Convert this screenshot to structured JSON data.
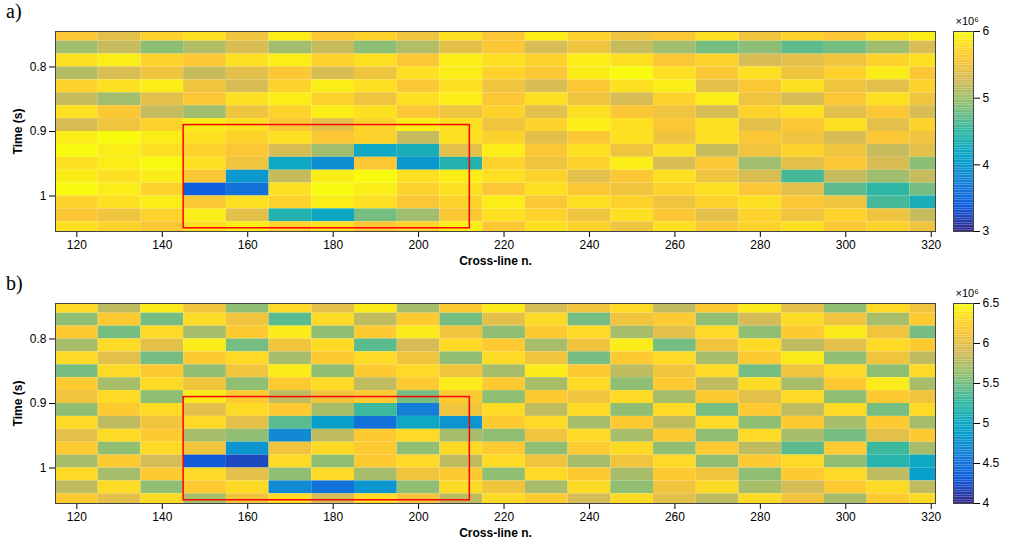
{
  "chart_data": [
    {
      "type": "heatmap",
      "panel_label": "a)",
      "xlabel": "Cross-line n.",
      "ylabel": "Time (s)",
      "xlim": [
        115,
        321
      ],
      "xticks": [
        120,
        140,
        160,
        180,
        200,
        220,
        240,
        260,
        280,
        300,
        320
      ],
      "ylim": [
        0.745,
        1.055
      ],
      "yticks": [
        0.8,
        0.9,
        1
      ],
      "x": [
        120,
        130,
        140,
        150,
        160,
        170,
        180,
        190,
        200,
        210,
        220,
        230,
        240,
        250,
        260,
        270,
        280,
        290,
        300,
        310,
        320
      ],
      "y": [
        0.75,
        0.77,
        0.79,
        0.81,
        0.83,
        0.85,
        0.87,
        0.89,
        0.91,
        0.93,
        0.95,
        0.97,
        0.99,
        1.01,
        1.03,
        1.05
      ],
      "values": [
        [
          5.6,
          5.4,
          5.7,
          5.8,
          5.5,
          5.9,
          5.6,
          5.7,
          5.5,
          5.8,
          5.6,
          5.9,
          5.7,
          5.5,
          5.6,
          5.8,
          5.5,
          5.7,
          5.6,
          5.8,
          5.9
        ],
        [
          5.0,
          5.2,
          4.9,
          5.1,
          5.3,
          5.0,
          5.2,
          4.9,
          5.1,
          5.4,
          5.6,
          5.3,
          5.5,
          5.2,
          5.0,
          4.8,
          4.9,
          4.7,
          4.8,
          5.0,
          5.3
        ],
        [
          5.8,
          5.9,
          5.7,
          5.6,
          5.8,
          5.9,
          5.7,
          5.8,
          5.6,
          5.9,
          5.8,
          5.7,
          5.9,
          5.8,
          5.6,
          5.7,
          5.3,
          5.4,
          5.5,
          5.7,
          5.8
        ],
        [
          5.1,
          5.3,
          5.5,
          5.2,
          5.4,
          5.6,
          5.3,
          5.5,
          5.8,
          5.9,
          5.7,
          5.6,
          5.9,
          6.0,
          5.8,
          5.6,
          5.8,
          5.5,
          5.7,
          5.9,
          5.6
        ],
        [
          5.7,
          5.8,
          5.9,
          5.5,
          5.3,
          5.7,
          5.9,
          5.8,
          5.6,
          5.8,
          5.5,
          5.3,
          5.6,
          5.8,
          5.9,
          5.4,
          5.6,
          5.8,
          5.5,
          5.4,
          5.7
        ],
        [
          5.2,
          5.0,
          5.4,
          5.6,
          5.8,
          5.9,
          5.7,
          5.5,
          5.8,
          5.9,
          5.6,
          5.8,
          5.5,
          5.3,
          5.7,
          5.9,
          5.5,
          5.3,
          5.6,
          5.8,
          5.5
        ],
        [
          5.8,
          5.6,
          5.2,
          5.0,
          5.5,
          5.7,
          5.9,
          5.8,
          5.6,
          5.5,
          5.7,
          5.4,
          5.8,
          5.6,
          5.5,
          5.3,
          5.7,
          5.8,
          5.4,
          5.6,
          5.3
        ],
        [
          5.3,
          5.5,
          5.7,
          5.9,
          5.8,
          5.6,
          5.4,
          5.7,
          5.9,
          5.8,
          5.5,
          5.7,
          5.9,
          5.8,
          5.6,
          5.8,
          5.4,
          5.6,
          5.8,
          5.4,
          5.7
        ],
        [
          5.9,
          6.0,
          5.9,
          5.8,
          5.7,
          5.8,
          5.6,
          5.7,
          5.2,
          5.8,
          5.7,
          5.4,
          5.6,
          5.8,
          5.5,
          5.8,
          5.6,
          5.5,
          5.3,
          5.6,
          5.5
        ],
        [
          6.0,
          5.9,
          5.8,
          5.7,
          5.6,
          5.3,
          5.0,
          4.2,
          4.3,
          5.4,
          5.9,
          5.6,
          5.8,
          5.5,
          5.8,
          5.2,
          5.5,
          5.7,
          5.5,
          5.2,
          5.4
        ],
        [
          5.8,
          5.9,
          6.0,
          5.8,
          5.5,
          4.2,
          3.9,
          5.6,
          4.0,
          4.4,
          5.7,
          5.5,
          5.7,
          5.9,
          5.3,
          5.6,
          5.0,
          5.4,
          5.6,
          5.3,
          4.9
        ],
        [
          5.9,
          5.8,
          5.9,
          5.6,
          4.0,
          5.2,
          5.9,
          6.0,
          5.8,
          5.9,
          5.8,
          5.7,
          5.4,
          5.6,
          5.8,
          5.5,
          5.3,
          4.6,
          5.2,
          5.0,
          5.2
        ],
        [
          6.0,
          5.9,
          5.7,
          3.4,
          3.6,
          5.8,
          6.0,
          5.9,
          5.7,
          5.8,
          5.6,
          5.8,
          5.6,
          5.5,
          5.7,
          5.8,
          5.6,
          5.4,
          4.7,
          4.5,
          4.8
        ],
        [
          5.7,
          5.8,
          5.9,
          5.6,
          5.8,
          5.7,
          5.9,
          5.8,
          5.6,
          5.7,
          5.9,
          5.6,
          5.8,
          5.7,
          5.5,
          5.7,
          5.8,
          5.6,
          5.5,
          4.6,
          4.3
        ],
        [
          5.6,
          5.5,
          5.7,
          5.9,
          5.4,
          4.4,
          4.2,
          4.8,
          5.0,
          5.6,
          5.8,
          5.7,
          5.5,
          5.8,
          5.6,
          5.4,
          5.7,
          5.5,
          5.7,
          5.5,
          5.2
        ],
        [
          5.8,
          5.7,
          5.6,
          5.8,
          5.9,
          5.7,
          5.8,
          5.6,
          5.7,
          5.9,
          5.6,
          5.8,
          5.7,
          5.5,
          5.8,
          5.6,
          5.7,
          5.8,
          5.6,
          5.7,
          5.5
        ]
      ],
      "colorbar": {
        "range": [
          3,
          6
        ],
        "ticks": [
          3,
          4,
          5,
          6
        ],
        "label": "×10⁶"
      },
      "highlight": {
        "x": [
          145,
          212
        ],
        "y": [
          0.89,
          1.05
        ],
        "color": "#ff0000"
      }
    },
    {
      "type": "heatmap",
      "panel_label": "b)",
      "xlabel": "Cross-line n.",
      "ylabel": "Time (s)",
      "xlim": [
        115,
        321
      ],
      "xticks": [
        120,
        140,
        160,
        180,
        200,
        220,
        240,
        260,
        280,
        300,
        320
      ],
      "ylim": [
        0.745,
        1.055
      ],
      "yticks": [
        0.8,
        0.9,
        1
      ],
      "x": [
        120,
        130,
        140,
        150,
        160,
        170,
        180,
        190,
        200,
        210,
        220,
        230,
        240,
        250,
        260,
        270,
        280,
        290,
        300,
        310,
        320
      ],
      "y": [
        0.75,
        0.77,
        0.79,
        0.81,
        0.83,
        0.85,
        0.87,
        0.89,
        0.91,
        0.93,
        0.95,
        0.97,
        0.99,
        1.01,
        1.03,
        1.05
      ],
      "values": [
        [
          6.3,
          5.8,
          6.4,
          6.1,
          5.6,
          6.3,
          6.0,
          6.4,
          5.7,
          6.2,
          6.4,
          5.9,
          6.1,
          6.3,
          5.8,
          6.2,
          6.4,
          6.0,
          5.6,
          6.3,
          6.1
        ],
        [
          5.6,
          6.2,
          5.5,
          6.3,
          6.1,
          5.4,
          6.3,
          5.8,
          6.2,
          5.5,
          6.0,
          6.3,
          5.5,
          6.1,
          6.2,
          5.6,
          5.9,
          6.3,
          6.1,
          5.7,
          6.2
        ],
        [
          6.2,
          5.5,
          6.3,
          5.7,
          6.2,
          6.4,
          5.6,
          6.2,
          6.4,
          6.1,
          5.6,
          6.2,
          6.3,
          5.7,
          6.0,
          6.3,
          5.6,
          6.2,
          6.4,
          6.1,
          5.5
        ],
        [
          5.7,
          6.3,
          6.0,
          6.4,
          5.5,
          6.1,
          6.3,
          5.4,
          5.9,
          6.3,
          6.2,
          5.7,
          6.1,
          6.4,
          5.5,
          6.1,
          6.3,
          5.8,
          6.0,
          6.3,
          6.2
        ],
        [
          6.3,
          6.0,
          5.5,
          6.2,
          6.3,
          5.7,
          6.2,
          6.3,
          6.1,
          5.6,
          6.3,
          6.1,
          5.5,
          6.2,
          6.3,
          5.7,
          6.2,
          6.4,
          5.6,
          6.1,
          5.8
        ],
        [
          5.5,
          6.3,
          6.2,
          5.6,
          6.1,
          6.4,
          5.6,
          6.2,
          6.3,
          6.1,
          5.7,
          6.4,
          6.2,
          5.8,
          6.1,
          6.3,
          5.5,
          6.1,
          6.3,
          5.6,
          6.3
        ],
        [
          6.2,
          5.7,
          6.3,
          6.1,
          5.6,
          6.2,
          6.3,
          5.8,
          6.2,
          6.4,
          6.2,
          5.7,
          6.3,
          5.6,
          6.2,
          5.8,
          6.3,
          5.7,
          6.2,
          6.4,
          5.7
        ],
        [
          6.1,
          6.3,
          5.6,
          6.4,
          6.2,
          5.8,
          6.1,
          6.2,
          5.5,
          6.2,
          5.6,
          6.2,
          6.1,
          6.3,
          5.7,
          6.2,
          6.0,
          6.3,
          5.6,
          6.2,
          6.1
        ],
        [
          5.6,
          6.2,
          6.3,
          6.0,
          6.3,
          6.2,
          5.7,
          5.3,
          4.6,
          6.1,
          6.3,
          5.8,
          6.3,
          5.6,
          6.3,
          5.5,
          6.2,
          5.8,
          6.3,
          5.5,
          6.3
        ],
        [
          6.3,
          5.8,
          6.1,
          6.3,
          6.0,
          5.4,
          4.9,
          4.5,
          5.0,
          4.8,
          6.2,
          6.3,
          5.7,
          6.2,
          5.8,
          6.3,
          5.6,
          6.2,
          5.7,
          6.2,
          5.7
        ],
        [
          6.0,
          6.3,
          6.2,
          5.7,
          5.6,
          4.7,
          5.8,
          6.2,
          6.3,
          5.7,
          5.6,
          6.1,
          6.3,
          5.7,
          6.2,
          5.6,
          6.3,
          5.7,
          5.5,
          6.0,
          6.2
        ],
        [
          6.2,
          5.6,
          6.3,
          6.1,
          4.8,
          6.1,
          6.3,
          6.2,
          5.6,
          6.3,
          6.2,
          5.6,
          6.2,
          6.3,
          5.6,
          6.2,
          5.8,
          5.4,
          6.2,
          5.3,
          5.7
        ],
        [
          5.7,
          6.2,
          5.9,
          4.3,
          4.2,
          6.3,
          5.6,
          6.2,
          6.3,
          5.8,
          6.3,
          6.1,
          5.7,
          6.1,
          6.3,
          5.6,
          6.2,
          6.3,
          5.6,
          5.2,
          5.0
        ],
        [
          6.3,
          5.7,
          6.2,
          6.3,
          6.0,
          5.6,
          6.3,
          5.7,
          6.1,
          6.2,
          5.6,
          6.3,
          6.2,
          5.7,
          6.2,
          6.1,
          5.6,
          6.2,
          6.3,
          5.8,
          4.9
        ],
        [
          5.8,
          6.3,
          5.6,
          6.2,
          6.3,
          4.7,
          4.5,
          4.8,
          5.6,
          6.3,
          6.1,
          5.7,
          6.3,
          5.6,
          6.1,
          6.3,
          5.7,
          5.9,
          6.2,
          6.3,
          5.8
        ],
        [
          6.2,
          6.0,
          6.3,
          5.7,
          6.1,
          6.3,
          5.9,
          6.3,
          6.1,
          5.8,
          6.3,
          6.2,
          5.9,
          6.3,
          6.0,
          5.8,
          6.3,
          6.1,
          5.7,
          6.2,
          6.3
        ]
      ],
      "colorbar": {
        "range": [
          4,
          6.5
        ],
        "ticks": [
          4,
          4.5,
          5,
          5.5,
          6,
          6.5
        ],
        "label": "×10⁶"
      },
      "highlight": {
        "x": [
          145,
          212
        ],
        "y": [
          0.89,
          1.05
        ],
        "color": "#ff0000"
      }
    }
  ]
}
